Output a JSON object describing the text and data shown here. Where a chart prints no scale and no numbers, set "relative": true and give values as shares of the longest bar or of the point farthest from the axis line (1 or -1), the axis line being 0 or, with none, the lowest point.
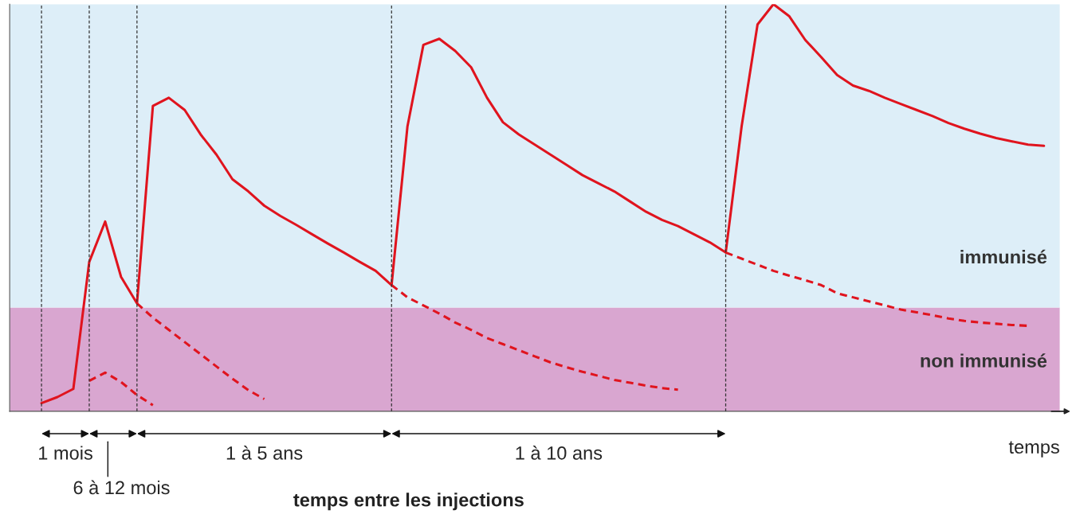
{
  "chart_data": {
    "type": "line",
    "relative": true,
    "xlabel": "temps",
    "grid": "x",
    "categories": [
      null,
      null,
      null,
      null,
      null,
      null,
      null,
      null,
      null,
      null,
      null,
      null,
      null,
      null,
      null,
      null,
      null,
      null,
      null,
      null,
      null,
      null,
      null,
      null,
      null,
      null,
      null,
      null,
      null,
      null,
      null,
      null,
      null,
      null,
      null,
      null,
      null,
      null,
      null,
      null,
      null,
      null,
      null,
      null,
      null,
      null,
      null,
      null,
      null,
      null,
      null,
      null,
      null,
      null,
      null,
      null,
      null,
      null,
      null,
      null,
      null,
      null,
      null,
      null,
      null,
      null,
      null
    ],
    "series": [
      {
        "color": "#e0141e",
        "line_style": "solid",
        "values": [
          null,
          null,
          0.02,
          0.035,
          0.055,
          0.367,
          0.466,
          0.33,
          0.265,
          0.75,
          0.77,
          0.74,
          0.68,
          0.63,
          0.57,
          0.54,
          0.505,
          0.48,
          0.458,
          0.435,
          0.412,
          0.39,
          0.367,
          0.345,
          0.31,
          0.7,
          0.9,
          0.915,
          0.885,
          0.845,
          0.77,
          0.71,
          0.68,
          0.655,
          0.63,
          0.605,
          0.58,
          0.56,
          0.54,
          0.515,
          0.49,
          0.47,
          0.455,
          0.435,
          0.415,
          0.39,
          0.7,
          0.95,
          1.0,
          0.97,
          0.912,
          0.87,
          0.826,
          0.8,
          0.787,
          0.77,
          0.755,
          0.74,
          0.725,
          0.708,
          0.694,
          0.682,
          0.671,
          0.663,
          0.655,
          0.652,
          null
        ]
      },
      {
        "color": "#e0141e",
        "line_style": "dashed",
        "values": [
          null,
          null,
          null,
          null,
          null,
          0.075,
          0.095,
          0.072,
          0.04,
          0.015,
          null,
          null,
          null,
          null,
          null,
          null,
          null,
          null,
          null,
          null,
          null,
          null,
          null,
          null,
          null,
          null,
          null,
          null,
          null,
          null,
          null,
          null,
          null,
          null,
          null,
          null,
          null,
          null,
          null,
          null,
          null,
          null,
          null,
          null,
          null,
          null,
          null,
          null,
          null,
          null,
          null,
          null,
          null,
          null,
          null,
          null,
          null,
          null,
          null,
          null,
          null,
          null,
          null,
          null,
          null,
          null,
          null
        ]
      },
      {
        "color": "#e0141e",
        "line_style": "dashed",
        "values": [
          null,
          null,
          null,
          null,
          null,
          null,
          null,
          null,
          0.265,
          0.23,
          0.2,
          0.17,
          0.14,
          0.11,
          0.08,
          0.052,
          0.03,
          null,
          null,
          null,
          null,
          null,
          null,
          null,
          null,
          null,
          null,
          null,
          null,
          null,
          null,
          null,
          null,
          null,
          null,
          null,
          null,
          null,
          null,
          null,
          null,
          null,
          null,
          null,
          null,
          null,
          null,
          null,
          null,
          null,
          null,
          null,
          null,
          null,
          null,
          null,
          null,
          null,
          null,
          null,
          null,
          null,
          null,
          null,
          null,
          null,
          null
        ]
      },
      {
        "color": "#e0141e",
        "line_style": "dashed",
        "values": [
          null,
          null,
          null,
          null,
          null,
          null,
          null,
          null,
          null,
          null,
          null,
          null,
          null,
          null,
          null,
          null,
          null,
          null,
          null,
          null,
          null,
          null,
          null,
          null,
          0.31,
          0.28,
          0.26,
          0.24,
          0.218,
          0.2,
          0.18,
          0.165,
          0.15,
          0.135,
          0.12,
          0.108,
          0.097,
          0.087,
          0.077,
          0.07,
          0.063,
          0.057,
          0.053,
          null,
          null,
          null,
          null,
          null,
          null,
          null,
          null,
          null,
          null,
          null,
          null,
          null,
          null,
          null,
          null,
          null,
          null,
          null,
          null,
          null,
          null,
          null,
          null
        ]
      },
      {
        "color": "#e0141e",
        "line_style": "dashed",
        "values": [
          null,
          null,
          null,
          null,
          null,
          null,
          null,
          null,
          null,
          null,
          null,
          null,
          null,
          null,
          null,
          null,
          null,
          null,
          null,
          null,
          null,
          null,
          null,
          null,
          null,
          null,
          null,
          null,
          null,
          null,
          null,
          null,
          null,
          null,
          null,
          null,
          null,
          null,
          null,
          null,
          null,
          null,
          null,
          null,
          null,
          0.39,
          0.375,
          0.36,
          0.345,
          0.333,
          0.322,
          0.31,
          0.29,
          0.28,
          0.27,
          0.26,
          0.25,
          0.243,
          0.236,
          0.228,
          0.222,
          0.218,
          0.215,
          0.212,
          0.21,
          null,
          null
        ]
      }
    ],
    "bands": [
      {
        "axis": "y",
        "from": 0,
        "to": 0.255,
        "label": "non immunisé",
        "color": "#d9a6d0"
      },
      {
        "axis": "y",
        "from": 0.255,
        "to": 1.0,
        "label": "immunisé",
        "color": "#ddeef8"
      }
    ],
    "annotations": [
      "1 mois",
      "6 à 12 mois",
      "1 à 5 ans",
      "1 à 10 ans",
      "temps entre les injections"
    ]
  }
}
